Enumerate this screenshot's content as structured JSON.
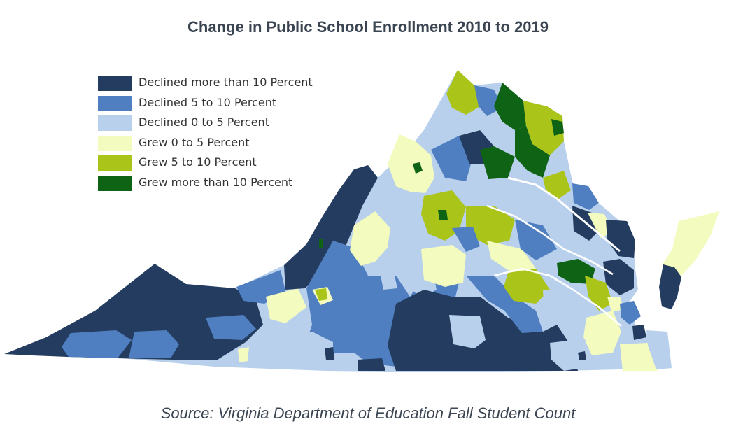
{
  "title": "Change in Public School Enrollment 2010 to 2019",
  "source": "Source: Virginia Department of Education Fall Student Count",
  "legend": [
    {
      "label": "Declined more than 10 Percent",
      "color": "#243c5f"
    },
    {
      "label": "Declined 5 to 10 Percent",
      "color": "#4f7fc0"
    },
    {
      "label": "Declined 0 to 5 Percent",
      "color": "#b8d0ec"
    },
    {
      "label": "Grew 0 to 5 Percent",
      "color": "#f3fbbe"
    },
    {
      "label": "Grew 5 to 10 Percent",
      "color": "#aac41a"
    },
    {
      "label": "Grew more than 10 Percent",
      "color": "#0f6314"
    }
  ]
}
